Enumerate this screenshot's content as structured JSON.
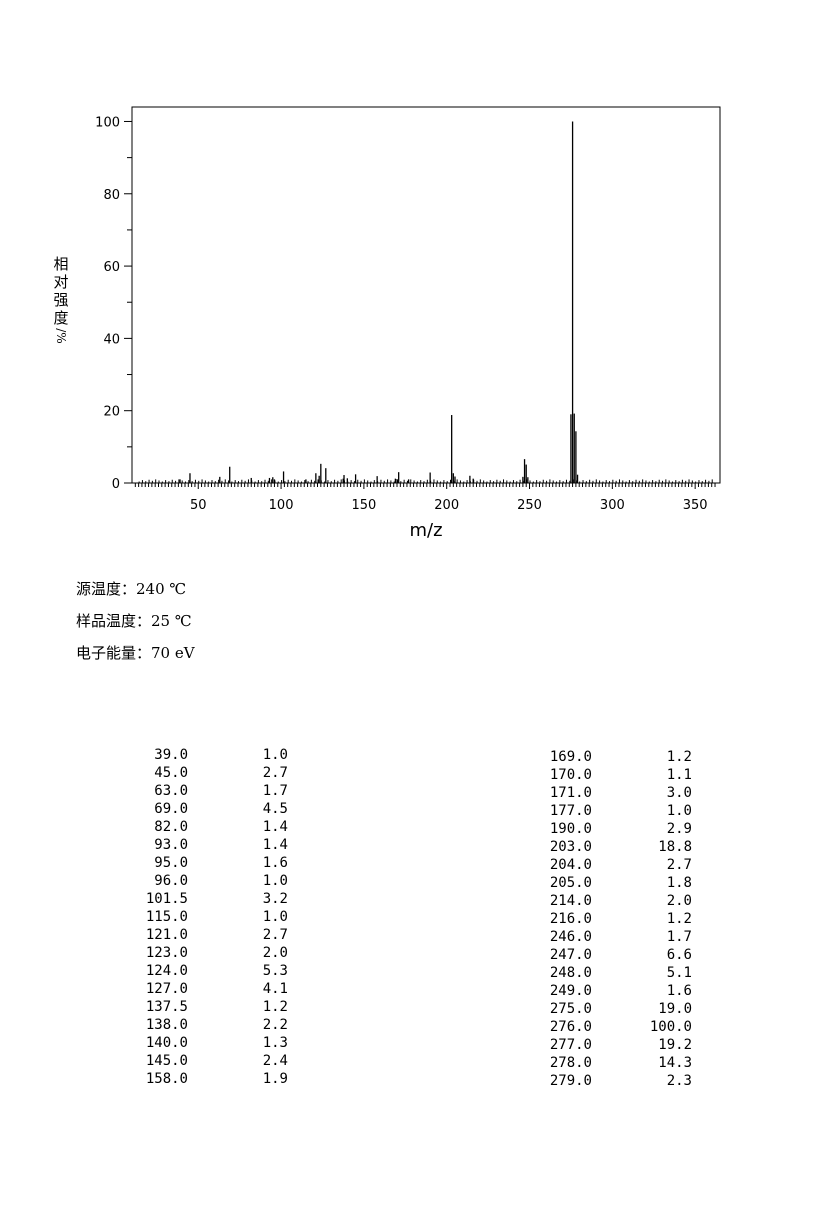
{
  "chart_data": {
    "type": "bar",
    "title": "",
    "xlabel": "m/z",
    "ylabel_chars": [
      "相",
      "对",
      "强",
      "度",
      "/%"
    ],
    "xlim": [
      10,
      365
    ],
    "ylim": [
      0,
      104
    ],
    "x_ticks": [
      50,
      100,
      150,
      200,
      250,
      300,
      350
    ],
    "y_ticks": [
      0,
      20,
      40,
      60,
      80,
      100
    ],
    "grid": false,
    "peaks": [
      {
        "x": 39.0,
        "y": 1.0
      },
      {
        "x": 45.0,
        "y": 2.7
      },
      {
        "x": 63.0,
        "y": 1.7
      },
      {
        "x": 69.0,
        "y": 4.5
      },
      {
        "x": 82.0,
        "y": 1.4
      },
      {
        "x": 93.0,
        "y": 1.4
      },
      {
        "x": 95.0,
        "y": 1.6
      },
      {
        "x": 96.0,
        "y": 1.0
      },
      {
        "x": 101.5,
        "y": 3.2
      },
      {
        "x": 115.0,
        "y": 1.0
      },
      {
        "x": 121.0,
        "y": 2.7
      },
      {
        "x": 123.0,
        "y": 2.0
      },
      {
        "x": 124.0,
        "y": 5.3
      },
      {
        "x": 127.0,
        "y": 4.1
      },
      {
        "x": 137.5,
        "y": 1.2
      },
      {
        "x": 138.0,
        "y": 2.2
      },
      {
        "x": 140.0,
        "y": 1.3
      },
      {
        "x": 145.0,
        "y": 2.4
      },
      {
        "x": 158.0,
        "y": 1.9
      },
      {
        "x": 169.0,
        "y": 1.2
      },
      {
        "x": 170.0,
        "y": 1.1
      },
      {
        "x": 171.0,
        "y": 3.0
      },
      {
        "x": 177.0,
        "y": 1.0
      },
      {
        "x": 190.0,
        "y": 2.9
      },
      {
        "x": 203.0,
        "y": 18.8
      },
      {
        "x": 204.0,
        "y": 2.7
      },
      {
        "x": 205.0,
        "y": 1.8
      },
      {
        "x": 214.0,
        "y": 2.0
      },
      {
        "x": 216.0,
        "y": 1.2
      },
      {
        "x": 246.0,
        "y": 1.7
      },
      {
        "x": 247.0,
        "y": 6.6
      },
      {
        "x": 248.0,
        "y": 5.1
      },
      {
        "x": 249.0,
        "y": 1.6
      },
      {
        "x": 275.0,
        "y": 19.0
      },
      {
        "x": 276.0,
        "y": 100.0
      },
      {
        "x": 277.0,
        "y": 19.2
      },
      {
        "x": 278.0,
        "y": 14.3
      },
      {
        "x": 279.0,
        "y": 2.3
      }
    ]
  },
  "conditions": [
    {
      "label": "源温度：",
      "value": "240 ℃"
    },
    {
      "label": "样品温度：",
      "value": "25 ℃"
    },
    {
      "label": "电子能量：",
      "value": "70 eV"
    }
  ],
  "table_left": [
    {
      "mz": "39.0",
      "int": "1.0"
    },
    {
      "mz": "45.0",
      "int": "2.7"
    },
    {
      "mz": "63.0",
      "int": "1.7"
    },
    {
      "mz": "69.0",
      "int": "4.5"
    },
    {
      "mz": "82.0",
      "int": "1.4"
    },
    {
      "mz": "93.0",
      "int": "1.4"
    },
    {
      "mz": "95.0",
      "int": "1.6"
    },
    {
      "mz": "96.0",
      "int": "1.0"
    },
    {
      "mz": "101.5",
      "int": "3.2"
    },
    {
      "mz": "115.0",
      "int": "1.0"
    },
    {
      "mz": "121.0",
      "int": "2.7"
    },
    {
      "mz": "123.0",
      "int": "2.0"
    },
    {
      "mz": "124.0",
      "int": "5.3"
    },
    {
      "mz": "127.0",
      "int": "4.1"
    },
    {
      "mz": "137.5",
      "int": "1.2"
    },
    {
      "mz": "138.0",
      "int": "2.2"
    },
    {
      "mz": "140.0",
      "int": "1.3"
    },
    {
      "mz": "145.0",
      "int": "2.4"
    },
    {
      "mz": "158.0",
      "int": "1.9"
    }
  ],
  "table_right": [
    {
      "mz": "169.0",
      "int": "1.2"
    },
    {
      "mz": "170.0",
      "int": "1.1"
    },
    {
      "mz": "171.0",
      "int": "3.0"
    },
    {
      "mz": "177.0",
      "int": "1.0"
    },
    {
      "mz": "190.0",
      "int": "2.9"
    },
    {
      "mz": "203.0",
      "int": "18.8"
    },
    {
      "mz": "204.0",
      "int": "2.7"
    },
    {
      "mz": "205.0",
      "int": "1.8"
    },
    {
      "mz": "214.0",
      "int": "2.0"
    },
    {
      "mz": "216.0",
      "int": "1.2"
    },
    {
      "mz": "246.0",
      "int": "1.7"
    },
    {
      "mz": "247.0",
      "int": "6.6"
    },
    {
      "mz": "248.0",
      "int": "5.1"
    },
    {
      "mz": "249.0",
      "int": "1.6"
    },
    {
      "mz": "275.0",
      "int": "19.0"
    },
    {
      "mz": "276.0",
      "int": "100.0"
    },
    {
      "mz": "277.0",
      "int": "19.2"
    },
    {
      "mz": "278.0",
      "int": "14.3"
    },
    {
      "mz": "279.0",
      "int": "2.3"
    }
  ]
}
